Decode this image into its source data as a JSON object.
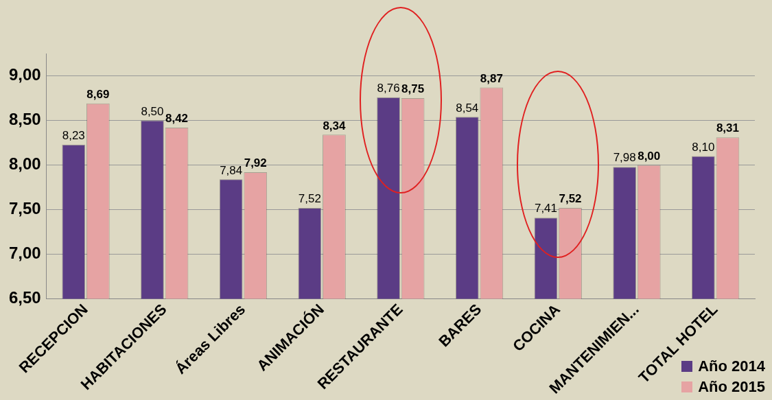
{
  "chart_data": {
    "type": "bar",
    "categories": [
      "RECEPCION",
      "HABITACIONES",
      "Áreas Libres",
      "ANIMACIÓN",
      "RESTAURANTE",
      "BARES",
      "COCINA",
      "MANTENIMIEN...",
      "TOTAL HOTEL"
    ],
    "series": [
      {
        "name": "Año 2014",
        "color": "#5b3c85",
        "values": [
          8.23,
          8.5,
          7.84,
          7.52,
          8.76,
          8.54,
          7.41,
          7.98,
          8.1
        ],
        "value_labels": [
          "8,23",
          "8,50",
          "7,84",
          "7,52",
          "8,76",
          "8,54",
          "7,41",
          "7,98",
          "8,10"
        ]
      },
      {
        "name": "Año 2015",
        "color": "#e6a3a3",
        "values": [
          8.69,
          8.42,
          7.92,
          8.34,
          8.75,
          8.87,
          7.52,
          8.0,
          8.31
        ],
        "value_labels": [
          "8,69",
          "8,42",
          "7,92",
          "8,34",
          "8,75",
          "8,87",
          "7,52",
          "8,00",
          "8,31"
        ]
      }
    ],
    "ylim": [
      6.5,
      9.25
    ],
    "yticks": [
      {
        "value": 6.5,
        "label": "6,50"
      },
      {
        "value": 7,
        "label": "7,00"
      },
      {
        "value": 7.5,
        "label": "7,50"
      },
      {
        "value": 8,
        "label": "8,00"
      },
      {
        "value": 8.5,
        "label": "8,50"
      },
      {
        "value": 9,
        "label": "9,00"
      }
    ],
    "grid": "y",
    "legend": "bottom right"
  }
}
